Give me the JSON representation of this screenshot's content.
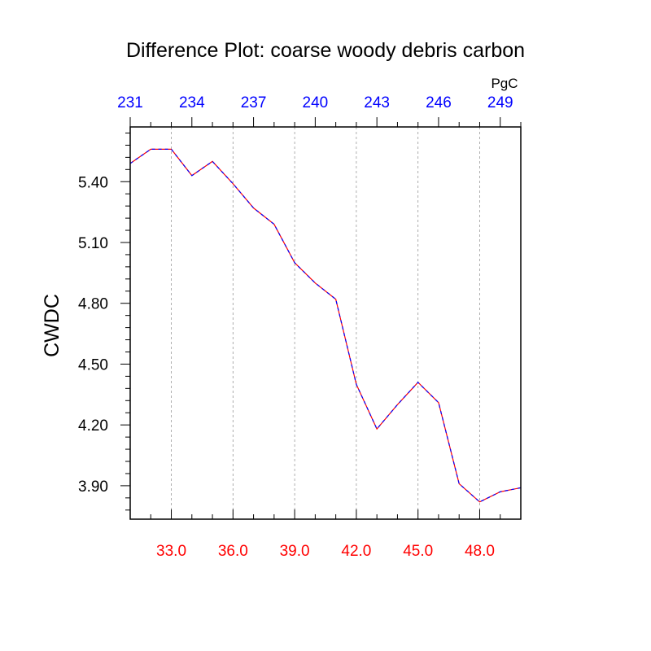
{
  "chart_data": {
    "type": "line",
    "title": "Difference Plot: coarse woody debris carbon",
    "ylabel": "CWDC",
    "xlabel": "",
    "top_axis_units": "PgC",
    "colors": {
      "bottom_ticks": "#ff0000",
      "top_ticks": "#0000ff",
      "line_a": "#ff0000",
      "line_b": "#0000ff",
      "grid": "#9a9a9a",
      "frame": "#000000"
    },
    "xlim": [
      31,
      50
    ],
    "ylim": [
      3.735,
      5.67
    ],
    "grid": "vertical dashed",
    "bottom_ticks": [
      "33.0",
      "36.0",
      "39.0",
      "42.0",
      "45.0",
      "48.0"
    ],
    "bottom_tick_values": [
      33,
      36,
      39,
      42,
      45,
      48
    ],
    "top_ticks": [
      "231",
      "234",
      "237",
      "240",
      "243",
      "246",
      "249"
    ],
    "top_tick_values": [
      31,
      34,
      37,
      40,
      43,
      46,
      49
    ],
    "y_ticks": [
      "3.90",
      "4.20",
      "4.50",
      "4.80",
      "5.10",
      "5.40"
    ],
    "y_tick_values": [
      3.9,
      4.2,
      4.5,
      4.8,
      5.1,
      5.4
    ],
    "series": [
      {
        "x": [
          31,
          32,
          33,
          34,
          35,
          36,
          37,
          38,
          39,
          40,
          41,
          42,
          43,
          44,
          45,
          46,
          47,
          48,
          49,
          50
        ],
        "values": [
          5.49,
          5.56,
          5.56,
          5.43,
          5.5,
          5.39,
          5.27,
          5.19,
          5.0,
          4.9,
          4.82,
          4.4,
          4.18,
          4.3,
          4.41,
          4.31,
          3.91,
          3.82,
          3.87,
          3.89
        ]
      }
    ]
  }
}
